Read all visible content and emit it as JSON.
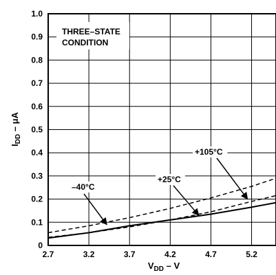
{
  "chart_data": {
    "type": "line",
    "xlabel_main": "V",
    "xlabel_sub": "DD",
    "xlabel_suffix": " – V",
    "ylabel_main": "I",
    "ylabel_sub": "DD",
    "ylabel_suffix": " – μA",
    "xlim": [
      2.7,
      5.5
    ],
    "ylim": [
      0,
      1.0
    ],
    "xticks": [
      "2.7",
      "3.2",
      "3.7",
      "4.2",
      "4.7",
      "5.2"
    ],
    "yticks": [
      "0",
      "0.1",
      "0.2",
      "0.3",
      "0.4",
      "0.5",
      "0.6",
      "0.7",
      "0.8",
      "0.9",
      "1.0"
    ],
    "grid": true,
    "annotation_lines": [
      "THREE–STATE",
      "CONDITION"
    ],
    "series": [
      {
        "name": "+105°C",
        "style": "dashed",
        "x": [
          2.7,
          3.2,
          3.7,
          4.2,
          4.7,
          5.2,
          5.5
        ],
        "y": [
          0.055,
          0.085,
          0.12,
          0.16,
          0.205,
          0.255,
          0.29
        ]
      },
      {
        "name": "+25°C",
        "style": "dashed",
        "x": [
          2.7,
          3.2,
          3.7,
          4.2,
          4.7,
          5.2,
          5.5
        ],
        "y": [
          0.035,
          0.055,
          0.08,
          0.11,
          0.145,
          0.19,
          0.215
        ]
      },
      {
        "name": "–40°C",
        "style": "solid",
        "x": [
          2.7,
          3.2,
          3.7,
          4.2,
          4.7,
          5.2,
          5.5
        ],
        "y": [
          0.032,
          0.055,
          0.085,
          0.11,
          0.135,
          0.165,
          0.185
        ]
      }
    ],
    "callouts": [
      {
        "label": "–40°C",
        "target_x": 3.42,
        "target_y": 0.09
      },
      {
        "label": "+25°C",
        "target_x": 4.55,
        "target_y": 0.13
      },
      {
        "label": "+105°C",
        "target_x": 5.15,
        "target_y": 0.2
      }
    ]
  }
}
